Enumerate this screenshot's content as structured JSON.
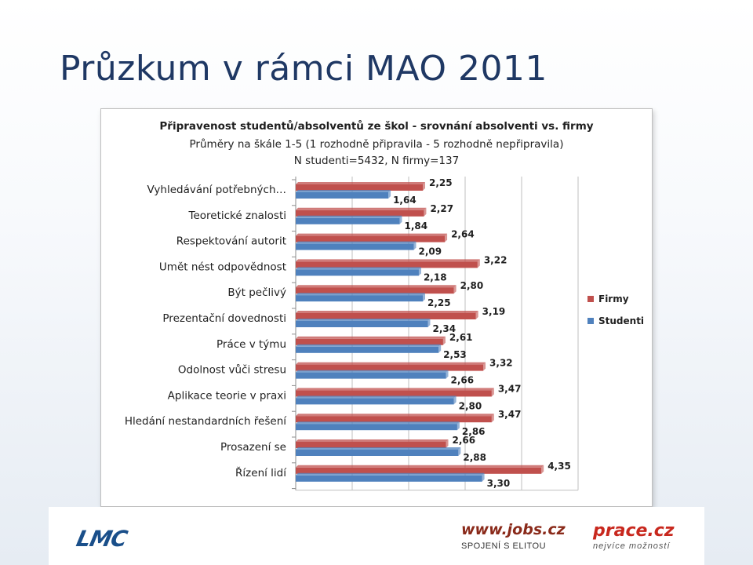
{
  "slide": {
    "title": "Průzkum v rámci MAO 2011"
  },
  "chart_data": {
    "type": "bar",
    "orientation": "horizontal",
    "title": "Připravenost studentů/absolventů ze škol - srovnání  absolventi vs. firmy",
    "subtitle": "Průměry na škále 1-5 (1 rozhodně připravila - 5 rozhodně nepřipravila)",
    "subtitle2": "N studenti=5432, N firmy=137",
    "categories": [
      "Vyhledávání potřebných…",
      "Teoretické znalosti",
      "Respektování autorit",
      "Umět nést odpovědnost",
      "Být pečlivý",
      "Prezentační dovednosti",
      "Práce v týmu",
      "Odolnost vůči stresu",
      "Aplikace teorie v praxi",
      "Hledání nestandardních řešení",
      "Prosazení se",
      "Řízení lidí"
    ],
    "series": [
      {
        "name": "Firmy",
        "color": "#c0504d",
        "values": [
          2.25,
          2.27,
          2.64,
          3.22,
          2.8,
          3.19,
          2.61,
          3.32,
          3.47,
          3.47,
          2.66,
          4.35
        ],
        "labels": [
          "2,25",
          "2,27",
          "2,64",
          "3,22",
          "2,80",
          "3,19",
          "2,61",
          "3,32",
          "3,47",
          "3,47",
          "2,66",
          "4,35"
        ]
      },
      {
        "name": "Studenti",
        "color": "#4f81bd",
        "values": [
          1.64,
          1.84,
          2.09,
          2.18,
          2.25,
          2.34,
          2.53,
          2.66,
          2.8,
          2.86,
          2.88,
          3.3
        ],
        "labels": [
          "1,64",
          "1,84",
          "2,09",
          "2,18",
          "2,25",
          "2,34",
          "2,53",
          "2,66",
          "2,80",
          "2,86",
          "2,88",
          "3,30"
        ]
      }
    ],
    "xlim": [
      0,
      5
    ],
    "grid": true,
    "legend_position": "right"
  },
  "footer": {
    "logo_lmc": "LMC",
    "logo_jobs": "www.jobs.cz",
    "logo_jobs_tagline": "SPOJENÍ S ELITOU",
    "logo_prace": "prace.cz",
    "logo_prace_tagline": "nejvíce možností"
  }
}
